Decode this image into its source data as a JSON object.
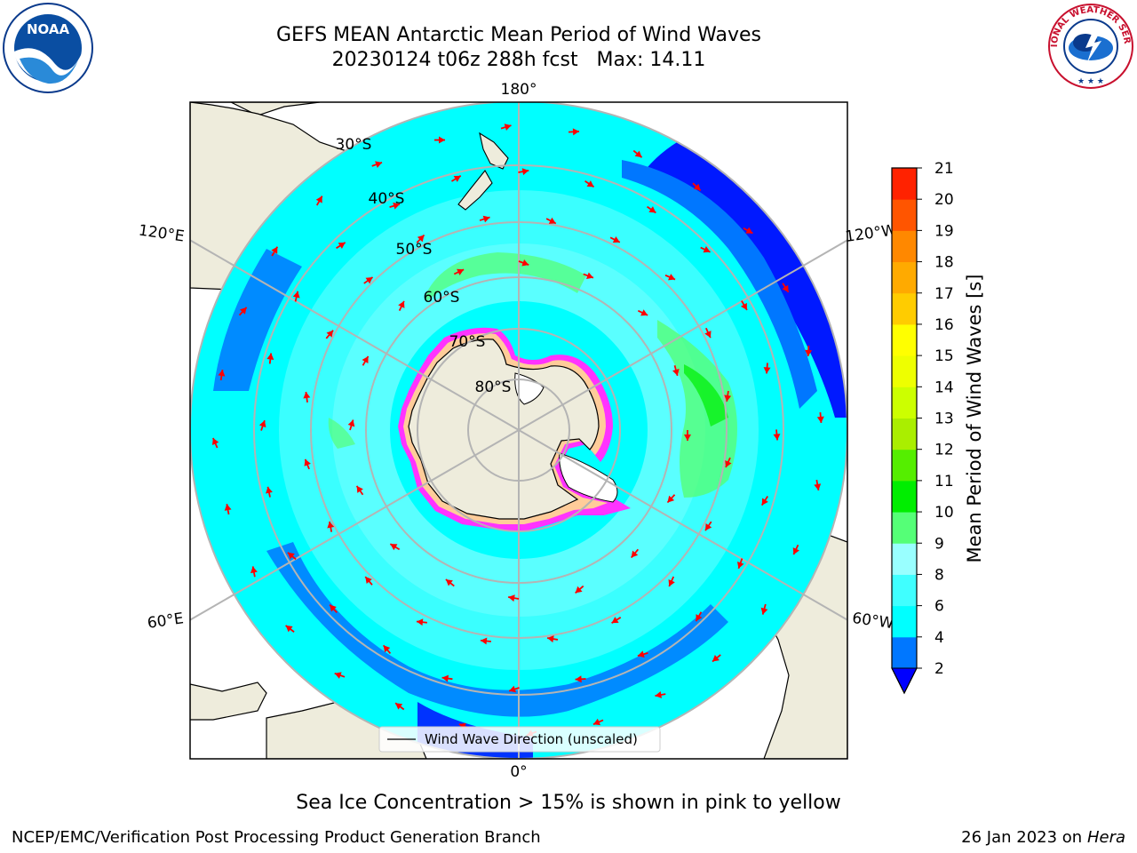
{
  "title": {
    "line1": "GEFS MEAN Antarctic Mean Period of Wind Waves",
    "line2": "20230124 t06z 288h fcst   Max: 14.11"
  },
  "map": {
    "projection": "south-polar-stereographic",
    "longitude_labels": {
      "top": "180°",
      "upper_left": "120°E",
      "upper_right": "120°W",
      "lower_left": "60°E",
      "lower_right": "60°W",
      "bottom": "0°"
    },
    "latitude_labels": [
      "30°S",
      "40°S",
      "50°S",
      "60°S",
      "70°S",
      "80°S"
    ],
    "legend_label": "Wind Wave Direction (unscaled)",
    "colors": {
      "land": "#eeecdc",
      "arrow": "#ff0000",
      "grid": "#b4b4b4",
      "sea_ice": "#ff33ff"
    }
  },
  "colorbar": {
    "label": "Mean Period of Wind Waves [s]",
    "ticks": [
      "2",
      "4",
      "6",
      "8",
      "9",
      "10",
      "11",
      "12",
      "13",
      "14",
      "15",
      "16",
      "17",
      "18",
      "19",
      "20",
      "21"
    ],
    "colors": [
      "#0077ff",
      "#00ffff",
      "#40ffff",
      "#99ffff",
      "#55ff77",
      "#00ee00",
      "#55ee00",
      "#aaee00",
      "#ccff00",
      "#eeff00",
      "#ffff00",
      "#ffcc00",
      "#ffaa00",
      "#ff8800",
      "#ff5500",
      "#ff2200"
    ],
    "extend_color": "#0000ff"
  },
  "note": "Sea Ice Concentration > 15% is shown in pink to yellow",
  "footer": {
    "left": "NCEP/EMC/Verification Post Processing Product Generation Branch",
    "right_prefix": "26 Jan 2023 on ",
    "right_machine": "Hera"
  },
  "logos": {
    "left": "NOAA",
    "right": "NATIONAL WEATHER SERVICE"
  }
}
